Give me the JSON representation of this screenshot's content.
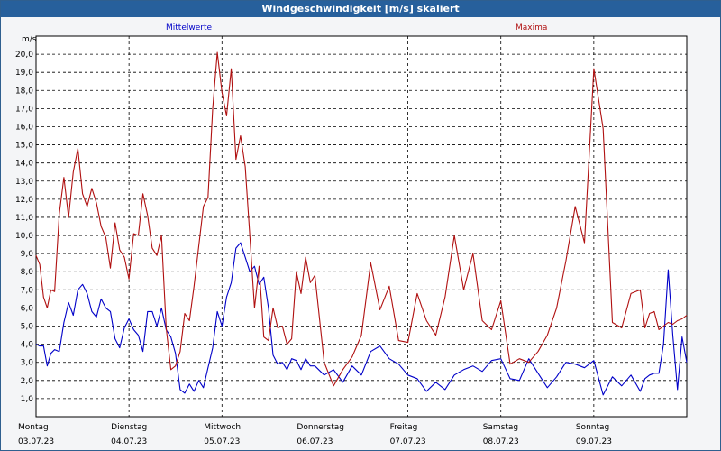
{
  "window": {
    "title": "Windgeschwindigkeit [m/s] skaliert"
  },
  "chart_data": {
    "type": "line",
    "ylabel": "m/s",
    "ylim": [
      0,
      21
    ],
    "yticks": [
      "1,0",
      "2,0",
      "3,0",
      "4,0",
      "5,0",
      "6,0",
      "7,0",
      "8,0",
      "9,0",
      "10,0",
      "11,0",
      "12,0",
      "13,0",
      "14,0",
      "15,0",
      "16,0",
      "17,0",
      "18,0",
      "19,0",
      "20,0"
    ],
    "xlim": [
      0,
      7
    ],
    "x_labels": [
      {
        "day": "Montag",
        "date": "03.07.23"
      },
      {
        "day": "Dienstag",
        "date": "04.07.23"
      },
      {
        "day": "Mittwoch",
        "date": "05.07.23"
      },
      {
        "day": "Donnerstag",
        "date": "06.07.23"
      },
      {
        "day": "Freitag",
        "date": "07.07.23"
      },
      {
        "day": "Samstag",
        "date": "08.07.23"
      },
      {
        "day": "Sonntag",
        "date": "09.07.23"
      }
    ],
    "grid": true,
    "series": [
      {
        "name": "Mittelwerte",
        "color": "#0000c8",
        "x": [
          0.0,
          0.04,
          0.08,
          0.12,
          0.16,
          0.2,
          0.25,
          0.3,
          0.35,
          0.4,
          0.45,
          0.5,
          0.55,
          0.6,
          0.65,
          0.7,
          0.75,
          0.8,
          0.85,
          0.9,
          0.95,
          1.0,
          1.05,
          1.1,
          1.15,
          1.2,
          1.25,
          1.3,
          1.35,
          1.4,
          1.45,
          1.5,
          1.55,
          1.6,
          1.65,
          1.7,
          1.75,
          1.8,
          1.85,
          1.9,
          1.95,
          2.0,
          2.05,
          2.1,
          2.15,
          2.2,
          2.25,
          2.3,
          2.35,
          2.4,
          2.45,
          2.5,
          2.55,
          2.6,
          2.65,
          2.7,
          2.75,
          2.8,
          2.85,
          2.9,
          2.95,
          3.0,
          3.1,
          3.2,
          3.3,
          3.4,
          3.5,
          3.6,
          3.7,
          3.8,
          3.9,
          4.0,
          4.1,
          4.2,
          4.3,
          4.4,
          4.5,
          4.6,
          4.7,
          4.8,
          4.9,
          5.0,
          5.1,
          5.2,
          5.3,
          5.4,
          5.5,
          5.6,
          5.7,
          5.8,
          5.9,
          6.0,
          6.1,
          6.2,
          6.3,
          6.4,
          6.5,
          6.55,
          6.6,
          6.65,
          6.7,
          6.75,
          6.8,
          6.85,
          6.9,
          6.95,
          7.0
        ],
        "values": [
          4.0,
          3.9,
          3.9,
          2.8,
          3.5,
          3.7,
          3.6,
          5.2,
          6.3,
          5.6,
          7.0,
          7.3,
          6.8,
          5.8,
          5.5,
          6.5,
          6.0,
          5.8,
          4.3,
          3.8,
          4.9,
          5.4,
          4.8,
          4.5,
          3.6,
          5.8,
          5.8,
          5.0,
          6.0,
          4.8,
          4.4,
          3.5,
          1.5,
          1.3,
          1.8,
          1.4,
          2.0,
          1.6,
          2.7,
          3.8,
          5.8,
          5.0,
          6.6,
          7.4,
          9.3,
          9.6,
          8.8,
          8.0,
          8.3,
          7.3,
          7.7,
          6.0,
          3.4,
          2.9,
          3.0,
          2.6,
          3.2,
          3.1,
          2.6,
          3.2,
          2.8,
          2.8,
          2.3,
          2.6,
          1.9,
          2.8,
          2.3,
          3.6,
          3.9,
          3.2,
          2.9,
          2.3,
          2.1,
          1.4,
          1.9,
          1.5,
          2.3,
          2.6,
          2.8,
          2.5,
          3.1,
          3.2,
          2.1,
          2.0,
          3.2,
          2.4,
          1.6,
          2.2,
          3.0,
          2.9,
          2.7,
          3.1,
          1.2,
          2.2,
          1.7,
          2.3,
          1.4,
          2.1,
          2.3,
          2.4,
          2.4,
          4.0,
          8.1,
          4.5,
          1.5,
          4.4,
          3.0
        ]
      },
      {
        "name": "Maxima",
        "color": "#b01010",
        "x": [
          0.0,
          0.04,
          0.08,
          0.12,
          0.16,
          0.2,
          0.25,
          0.3,
          0.35,
          0.4,
          0.45,
          0.5,
          0.55,
          0.6,
          0.65,
          0.7,
          0.75,
          0.8,
          0.85,
          0.9,
          0.95,
          1.0,
          1.05,
          1.1,
          1.15,
          1.2,
          1.25,
          1.3,
          1.35,
          1.4,
          1.45,
          1.5,
          1.55,
          1.6,
          1.65,
          1.7,
          1.75,
          1.8,
          1.85,
          1.9,
          1.95,
          2.0,
          2.05,
          2.1,
          2.15,
          2.2,
          2.25,
          2.3,
          2.35,
          2.4,
          2.45,
          2.5,
          2.55,
          2.6,
          2.65,
          2.7,
          2.75,
          2.8,
          2.85,
          2.9,
          2.95,
          3.0,
          3.1,
          3.2,
          3.3,
          3.4,
          3.5,
          3.6,
          3.7,
          3.8,
          3.9,
          4.0,
          4.1,
          4.2,
          4.3,
          4.4,
          4.5,
          4.6,
          4.7,
          4.8,
          4.9,
          5.0,
          5.1,
          5.2,
          5.3,
          5.4,
          5.5,
          5.6,
          5.7,
          5.8,
          5.9,
          6.0,
          6.1,
          6.2,
          6.3,
          6.4,
          6.5,
          6.55,
          6.6,
          6.65,
          6.7,
          6.75,
          6.8,
          6.85,
          6.9,
          6.95,
          7.0
        ],
        "values": [
          8.9,
          8.4,
          6.6,
          6.0,
          7.0,
          6.9,
          11.2,
          13.2,
          11.0,
          13.5,
          14.8,
          12.3,
          11.6,
          12.6,
          11.8,
          10.5,
          9.9,
          8.2,
          10.7,
          9.2,
          8.8,
          7.6,
          10.1,
          10.0,
          12.3,
          11.1,
          9.3,
          8.9,
          10.0,
          4.9,
          2.6,
          2.8,
          3.6,
          5.7,
          5.3,
          7.2,
          9.4,
          11.6,
          12.1,
          17.0,
          20.1,
          17.9,
          16.6,
          19.2,
          14.2,
          15.5,
          13.8,
          10.0,
          6.0,
          8.3,
          4.4,
          4.2,
          6.0,
          4.9,
          5.0,
          4.0,
          4.3,
          8.0,
          6.8,
          8.8,
          7.4,
          7.8,
          3.0,
          1.7,
          2.6,
          3.3,
          4.5,
          8.5,
          5.9,
          7.2,
          4.2,
          4.1,
          6.8,
          5.3,
          4.5,
          6.6,
          10.0,
          7.0,
          9.0,
          5.3,
          4.8,
          6.4,
          2.9,
          3.2,
          3.0,
          3.6,
          4.5,
          6.0,
          8.6,
          11.6,
          9.6,
          19.2,
          15.9,
          5.2,
          4.9,
          6.8,
          7.0,
          4.9,
          5.7,
          5.8,
          4.8,
          5.0,
          5.2,
          5.1,
          5.3,
          5.4,
          5.6
        ]
      }
    ]
  }
}
